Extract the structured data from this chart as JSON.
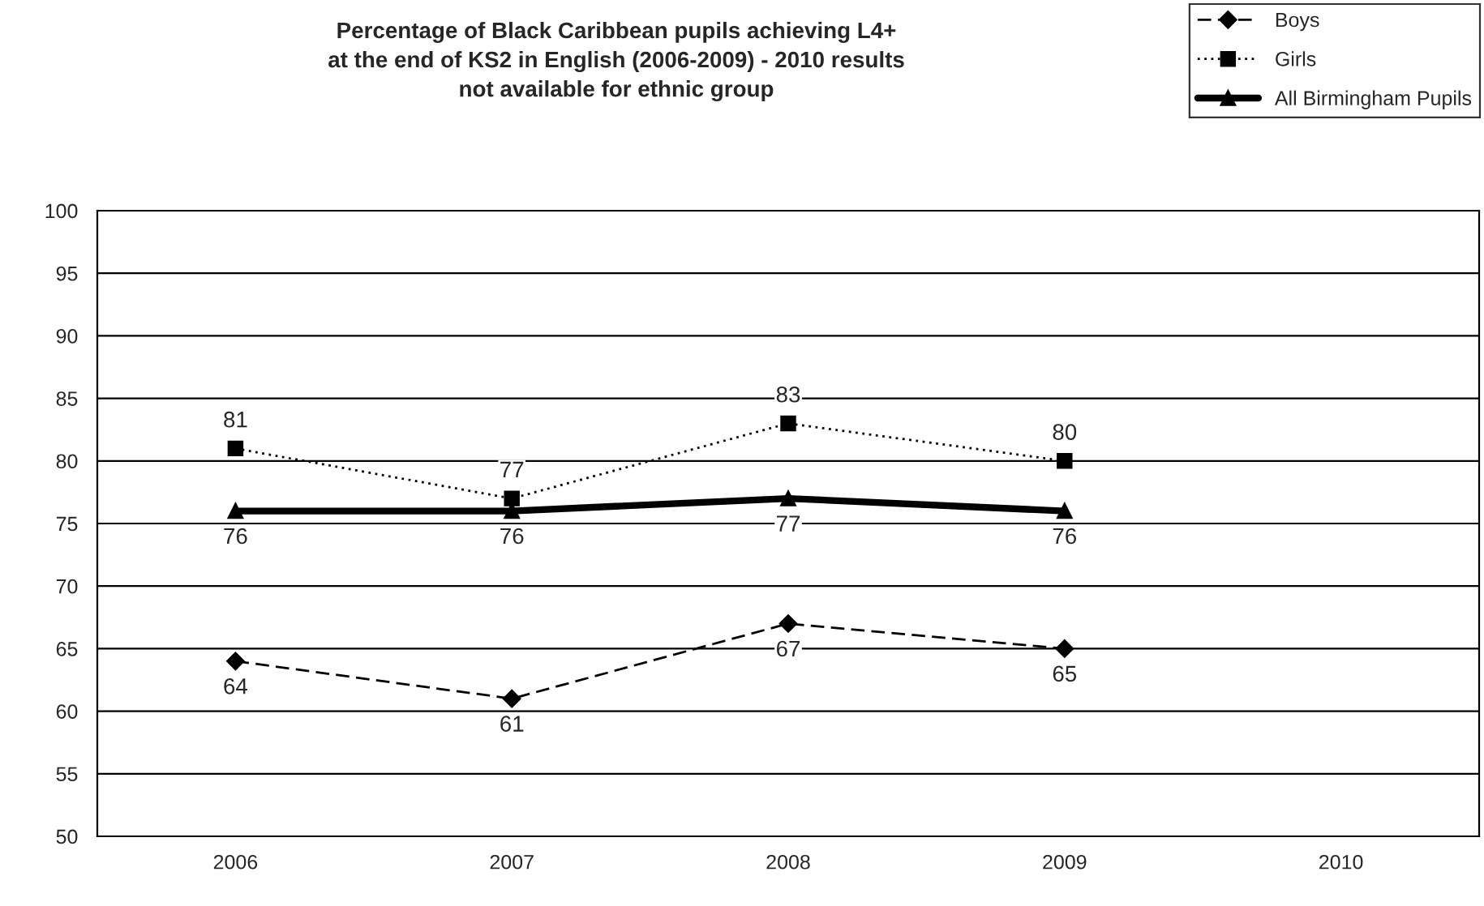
{
  "chart_data": {
    "type": "line",
    "title": "Percentage of Black Caribbean pupils achieving L4+\nat the end of KS2 in English (2006-2009) - 2010 results\nnot available for ethnic group",
    "categories": [
      "2006",
      "2007",
      "2008",
      "2009",
      "2010"
    ],
    "series": [
      {
        "name": "Boys",
        "color": "#000000",
        "values": [
          64,
          61,
          67,
          65,
          null
        ],
        "marker": "diamond",
        "line_style": "dashed"
      },
      {
        "name": "Girls",
        "color": "#000000",
        "values": [
          81,
          77,
          83,
          80,
          null
        ],
        "marker": "square",
        "line_style": "dotted"
      },
      {
        "name": "All Birmingham Pupils",
        "color": "#000000",
        "values": [
          76,
          76,
          77,
          76,
          null
        ],
        "marker": "triangle",
        "line_style": "solid"
      }
    ],
    "ylim": [
      50,
      100
    ],
    "yticks": [
      50,
      55,
      60,
      65,
      70,
      75,
      80,
      85,
      90,
      95,
      100
    ],
    "grid": "y",
    "legend": "top right",
    "data_labels": true
  }
}
